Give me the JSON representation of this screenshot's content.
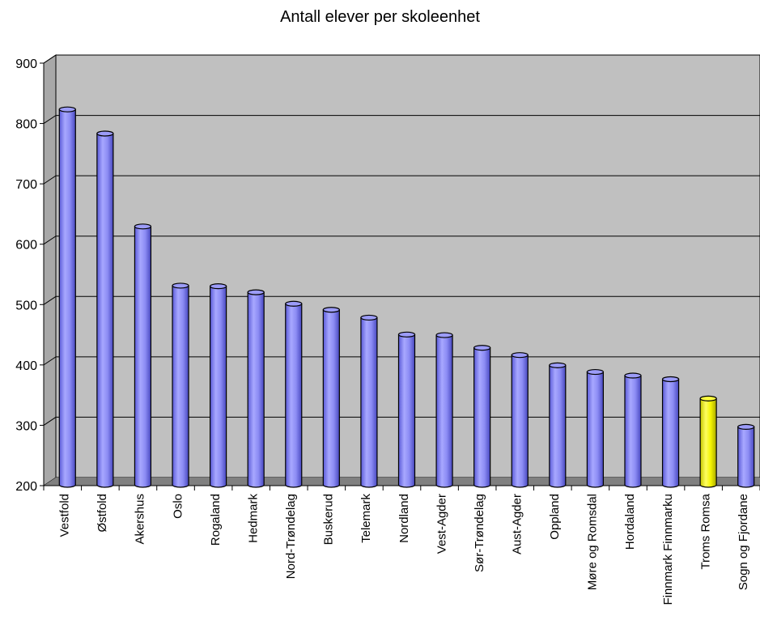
{
  "chart_data": {
    "type": "bar",
    "title": "Antall elever per skoleenhet",
    "xlabel": "",
    "ylabel": "",
    "ylim": [
      200,
      900
    ],
    "yticks": [
      200,
      300,
      400,
      500,
      600,
      700,
      800,
      900
    ],
    "grid": true,
    "legend": "none",
    "categories": [
      "Vestfold",
      "Østfold",
      "Akershus",
      "Oslo",
      "Rogaland",
      "Hedmark",
      "Nord-Trøndelag",
      "Buskerud",
      "Telemark",
      "Nordland",
      "Vest-Agder",
      "Sør-Trøndelag",
      "Aust-Agder",
      "Oppland",
      "Møre og Romsdal",
      "Hordaland",
      "Finnmark Finnmarku",
      "Troms Romsa",
      "Sogn og Fjordane"
    ],
    "values": [
      822,
      782,
      628,
      530,
      529,
      519,
      500,
      490,
      477,
      449,
      448,
      427,
      415,
      398,
      387,
      381,
      375,
      343,
      296
    ],
    "highlight_index": 17,
    "colors": {
      "bar": "#8080f0",
      "bar_highlight": "#ffff00",
      "wall": "#c0c0c0",
      "floor": "#808080"
    }
  }
}
